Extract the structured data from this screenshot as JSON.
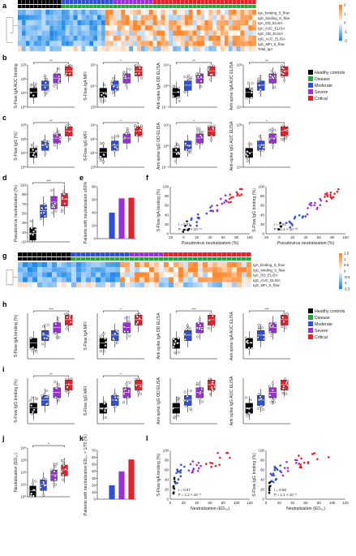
{
  "panel_letters": [
    "a",
    "b",
    "c",
    "d",
    "e",
    "f",
    "g",
    "h",
    "i",
    "j",
    "k",
    "l"
  ],
  "groups": [
    {
      "name": "Healthy controls",
      "color": "#000000"
    },
    {
      "name": "Disease",
      "color": "#22a83a"
    },
    {
      "name": "Moderate",
      "color": "#2f4fd6"
    },
    {
      "name": "Severe",
      "color": "#9b30d9"
    },
    {
      "name": "Critical",
      "color": "#e8202a"
    }
  ],
  "heatmap_a_rows": [
    "IgA_binding_S_flow",
    "IgG_binding_S_flow",
    "IgA_OD_ELISA",
    "IgA_AUC_ELISA",
    "IgG_OD_ELISA",
    "IgG_AUC_ELISA",
    "IgG_MFI_S_flow",
    "Total_IgA"
  ],
  "heatmap_g_rows": [
    "IgA_binding_S_flow",
    "IgG_binding_S_flow",
    "IgA_OD_ELISA",
    "IgG_AUC_ELISA",
    "IgG_MFI_S_flow"
  ],
  "scale_a": [
    "2",
    "1",
    "0",
    "-1",
    "-2"
  ],
  "scale_g": [
    "1.5",
    "1",
    "0.5",
    "0",
    "-0.5",
    "-1",
    "-1.5"
  ],
  "row_b": [
    {
      "ylabel": "S-Flow IgA AUC binding",
      "ticks": [
        "10³",
        "10²",
        "10¹",
        "10⁰"
      ],
      "sig": "**"
    },
    {
      "ylabel": "S-Flow IgA MFI",
      "ticks": [
        "10⁵",
        "10⁴",
        "10³"
      ],
      "sig": "*"
    },
    {
      "ylabel": "Anti-spike IgA OD ELISA",
      "ticks": [
        "10¹",
        "10⁰",
        "10⁻¹"
      ],
      "sig": "**"
    },
    {
      "ylabel": "Anti-spike IgA AUC ELISA",
      "ticks": [
        "10²",
        "10¹"
      ],
      "sig": "**"
    }
  ],
  "row_c": [
    {
      "ylabel": "S-Flow IgG (%)",
      "ticks": [
        "10³",
        "10²",
        "10¹",
        "10⁰"
      ],
      "sig": "**"
    },
    {
      "ylabel": "S-Flow IgG MFI",
      "ticks": [
        "10⁶",
        "10⁵",
        "10⁴",
        "10³"
      ],
      "sig": "*"
    },
    {
      "ylabel": "Anti-spike IgG OD ELISA",
      "ticks": [
        "10¹",
        "10⁰",
        "10⁻¹"
      ],
      "sig": "*"
    },
    {
      "ylabel": "Anti-spike IgG AUC ELISA",
      "ticks": [
        "10²",
        "10¹"
      ],
      "sig": "*"
    }
  ],
  "panel_d": {
    "ylabel": "Pseudovirus neutralization (%)",
    "ticks": [
      "110",
      "90",
      "70",
      "50",
      "30",
      "10",
      "-10"
    ],
    "sig": "***"
  },
  "panel_e": {
    "ylabel": "Patients with neutralization ≥50%",
    "ticks": [
      "80",
      "60",
      "40",
      "20",
      "0"
    ],
    "values": [
      0,
      40,
      62,
      63
    ]
  },
  "panel_f": [
    {
      "ylabel": "S-Flow IgA binding (%)",
      "stat1": "r = 0.81",
      "stat2": "P = 1.1 × 10⁻¹¹"
    },
    {
      "ylabel": "S-Flow IgG binding (%)",
      "stat1": "r = 0.81",
      "stat2": "P = 1.4 × 10⁻¹⁰"
    }
  ],
  "panel_f_xlabel": "Pseudovirus neutralization (%)",
  "panel_f_xticks": [
    "-20",
    "0",
    "20",
    "40",
    "60",
    "80",
    "100"
  ],
  "row_h": [
    {
      "ylabel": "S-Flow IgA binding (%)",
      "sig": "***"
    },
    {
      "ylabel": "S-Flow IgA MFI",
      "sig": "*"
    },
    {
      "ylabel": "Anti-spike IgA OD ELISA",
      "sig": "***"
    },
    {
      "ylabel": "Anti-spike IgA AUC ELISA",
      "sig": "***"
    }
  ],
  "row_i": [
    {
      "ylabel": "S-Flow IgG binding (%)",
      "sig": "**"
    },
    {
      "ylabel": "S-Flow IgG MFI",
      "sig": "*"
    },
    {
      "ylabel": "Anti-spike IgG OD ELISA",
      "sig": ""
    },
    {
      "ylabel": "Anti-spike IgG AUC ELISA",
      "sig": ""
    }
  ],
  "panel_j": {
    "ylabel": "Neutralization (ED₅₀)",
    "sig": "*"
  },
  "panel_k": {
    "ylabel": "Patients with neutralization ED₅₀ > 1/70 (%)",
    "ticks": [
      "70",
      "60",
      "50",
      "40",
      "30",
      "20",
      "10",
      "0"
    ],
    "values": [
      0,
      20,
      40,
      57
    ]
  },
  "panel_l": [
    {
      "ylabel": "S-Flow IgA binding (%)",
      "stat1": "r = 0.57",
      "stat2": "P = 1.2 × 10⁻⁵",
      "xlabel": "Neutralization (ED₅₀)"
    },
    {
      "ylabel": "S-Flow IgG binding (%)",
      "stat1": "r = 0.58",
      "stat2": "P = 1.1 × 10⁻⁵",
      "xlabel": "Neutralization (ED₅₀)"
    }
  ],
  "panel_l_xticks": [
    "0",
    "20",
    "40",
    "60",
    "80",
    "100",
    "120"
  ]
}
